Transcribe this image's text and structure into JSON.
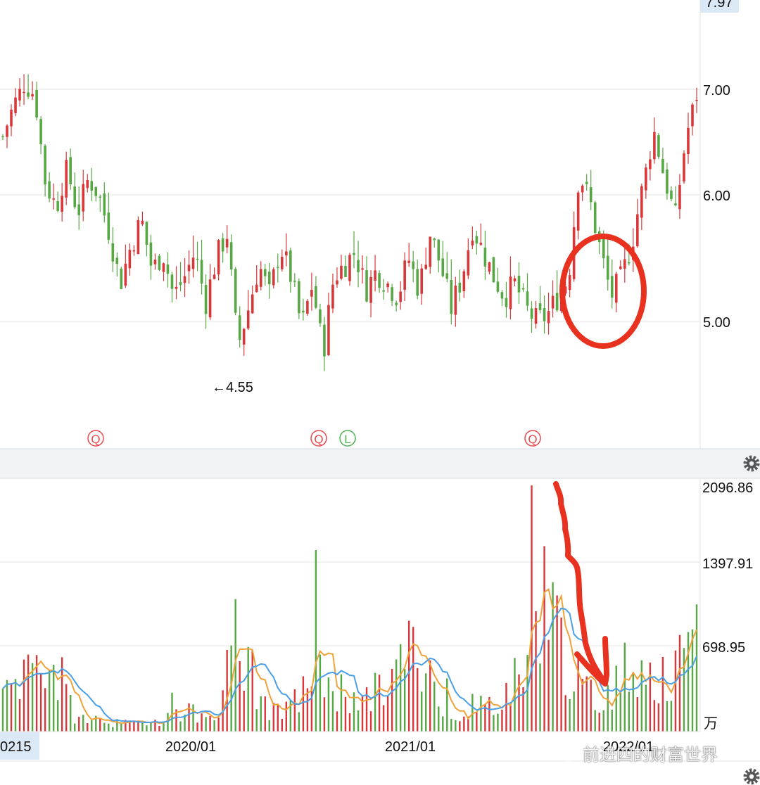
{
  "chart_data": [
    {
      "type": "candlestick",
      "panel": "price",
      "y_ticks": [
        "7.00",
        "6.00",
        "5.00"
      ],
      "y_top_label": "7.97",
      "min_marker": {
        "label": "←4.55",
        "value": 4.55
      },
      "event_markers": [
        {
          "label": "Q",
          "color": "#e8474b"
        },
        {
          "label": "Q",
          "color": "#e8474b"
        },
        {
          "label": "L",
          "color": "#4caf50"
        },
        {
          "label": "Q",
          "color": "#e8474b"
        }
      ],
      "ylim": [
        4.2,
        7.97
      ],
      "close_path": [
        6.55,
        6.85,
        7.05,
        6.95,
        6.1,
        5.9,
        6.25,
        5.85,
        6.15,
        6.0,
        5.7,
        5.3,
        5.6,
        5.8,
        5.4,
        5.55,
        5.2,
        5.35,
        5.55,
        5.15,
        5.5,
        5.7,
        4.8,
        5.1,
        5.45,
        5.2,
        5.6,
        5.35,
        4.95,
        5.3,
        4.75,
        5.35,
        5.45,
        5.55,
        5.25,
        5.4,
        5.3,
        5.2,
        5.5,
        5.25,
        5.7,
        5.45,
        5.1,
        5.35,
        5.75,
        5.55,
        5.35,
        5.2,
        5.3,
        5.1,
        5.0,
        5.05,
        5.2,
        5.35,
        6.2,
        5.95,
        5.55,
        5.2,
        5.35,
        5.65,
        6.1,
        6.6,
        6.15,
        5.8,
        6.55,
        6.95
      ],
      "annotations": [
        {
          "type": "circle",
          "color": "#e8321f"
        }
      ]
    },
    {
      "type": "bar+line",
      "panel": "volume",
      "unit": "万",
      "y_ticks": [
        "2096.86",
        "1397.91",
        "698.95"
      ],
      "ylim": [
        0,
        2096.86
      ],
      "x_tick_labels": [
        "0215",
        "2020/01",
        "2021/01",
        "2022/01"
      ],
      "ma_colors": [
        "#f0a23a",
        "#4a9fe6"
      ],
      "volume_level_path": [
        300,
        420,
        560,
        650,
        380,
        150,
        90,
        110,
        70,
        60,
        90,
        100,
        150,
        200,
        110,
        160,
        520,
        650,
        330,
        160,
        140,
        300,
        560,
        430,
        320,
        220,
        300,
        370,
        550,
        680,
        470,
        280,
        140,
        110,
        180,
        300,
        380,
        620,
        1250,
        900,
        560,
        330,
        260,
        380,
        520,
        600,
        460,
        380,
        560,
        700
      ],
      "annotations": [
        {
          "type": "arrow",
          "color": "#e8321f"
        }
      ]
    }
  ],
  "ui": {
    "settings_icon": "gear-icon",
    "watermark_text": "前进四的财富世界"
  }
}
